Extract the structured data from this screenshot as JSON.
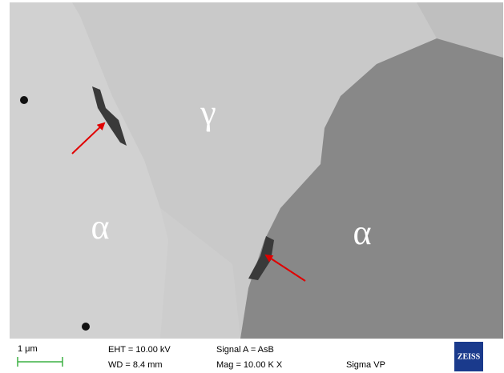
{
  "micrograph": {
    "labels": [
      "γ",
      "α",
      "α"
    ]
  },
  "info_bar": {
    "scale": "1 μm",
    "eht": "EHT = 10.00 kV",
    "wd": "WD = 8.4 mm",
    "signal": "Signal A = AsB",
    "mag": "Mag = 10.00 K X",
    "instrument": "Sigma VP",
    "logo": "ZEISS"
  }
}
